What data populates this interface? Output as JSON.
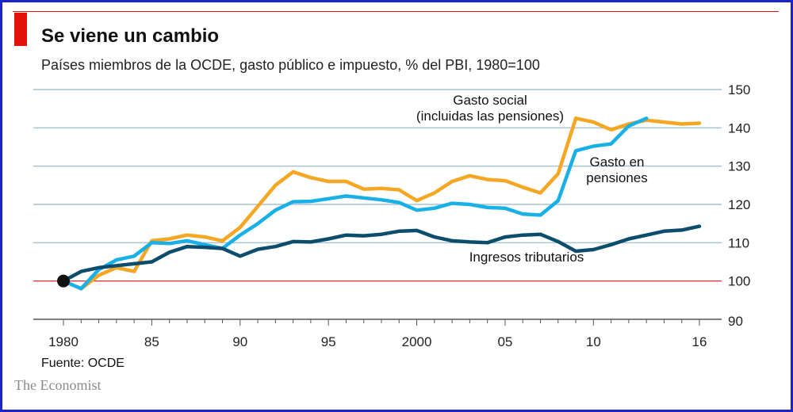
{
  "header": {
    "title": "Se viene un cambio",
    "subtitle": "Países miembros de la OCDE, gasto público e impuesto, % del PBI, 1980=100"
  },
  "footer": {
    "source": "Fuente: OCDE",
    "brand": "The Economist"
  },
  "colors": {
    "gasto_social": "#f5a623",
    "gasto_pensiones": "#18b0e6",
    "ingresos": "#0c4d6e",
    "baseline": "#e3120b",
    "grid": "#a9c4d0",
    "marker": "#111111"
  },
  "chart_data": {
    "type": "line",
    "title": "Se viene un cambio",
    "subtitle": "Países miembros de la OCDE, gasto público e impuesto, % del PBI, 1980=100",
    "xlabel": "",
    "ylabel": "",
    "xlim": [
      1980,
      2016
    ],
    "ylim": [
      90,
      150
    ],
    "y_ticks": [
      90,
      100,
      110,
      120,
      130,
      140,
      150
    ],
    "x_ticks": [
      {
        "year": 1980,
        "label": "1980"
      },
      {
        "year": 1985,
        "label": "85"
      },
      {
        "year": 1990,
        "label": "90"
      },
      {
        "year": 1995,
        "label": "95"
      },
      {
        "year": 2000,
        "label": "2000"
      },
      {
        "year": 2005,
        "label": "05"
      },
      {
        "year": 2010,
        "label": "10"
      },
      {
        "year": 2016,
        "label": "16"
      }
    ],
    "baseline": 100,
    "grid": true,
    "series": [
      {
        "key": "gasto_social",
        "label_lines": [
          "Gasto social",
          "(incluidas las pensiones)"
        ],
        "x": [
          1980,
          1981,
          1982,
          1983,
          1984,
          1985,
          1986,
          1987,
          1988,
          1989,
          1990,
          1991,
          1992,
          1993,
          1994,
          1995,
          1996,
          1997,
          1998,
          1999,
          2000,
          2001,
          2002,
          2003,
          2004,
          2005,
          2006,
          2007,
          2008,
          2009,
          2010,
          2011,
          2012,
          2013,
          2014,
          2015,
          2016
        ],
        "values": [
          100,
          98,
          101.5,
          103.5,
          102.5,
          110.5,
          111,
          112,
          111.5,
          110.5,
          114,
          119.5,
          125,
          128.5,
          127,
          126,
          126,
          124,
          124.2,
          123.8,
          121,
          123,
          126,
          127.5,
          126.5,
          126.2,
          124.5,
          123,
          128,
          142.5,
          141.5,
          139.5,
          141,
          142,
          141.5,
          141,
          141.2
        ]
      },
      {
        "key": "gasto_pensiones",
        "label_lines": [
          "Gasto en",
          "pensiones"
        ],
        "x": [
          1980,
          1981,
          1982,
          1983,
          1984,
          1985,
          1986,
          1987,
          1988,
          1989,
          1990,
          1991,
          1992,
          1993,
          1994,
          1995,
          1996,
          1997,
          1998,
          1999,
          2000,
          2001,
          2002,
          2003,
          2004,
          2005,
          2006,
          2007,
          2008,
          2009,
          2010,
          2011,
          2012,
          2013
        ],
        "values": [
          100,
          98,
          103,
          105.5,
          106.5,
          110,
          109.8,
          110.5,
          109.5,
          108.5,
          112,
          115,
          118.5,
          120.7,
          120.8,
          121.5,
          122.2,
          121.7,
          121.2,
          120.5,
          118.5,
          119,
          120.3,
          120,
          119.2,
          119,
          117.5,
          117.2,
          121,
          134,
          135.2,
          135.8,
          140.5,
          142.5
        ]
      },
      {
        "key": "ingresos",
        "label_lines": [
          "Ingresos tributarios"
        ],
        "x": [
          1980,
          1981,
          1982,
          1983,
          1984,
          1985,
          1986,
          1987,
          1988,
          1989,
          1990,
          1991,
          1992,
          1993,
          1994,
          1995,
          1996,
          1997,
          1998,
          1999,
          2000,
          2001,
          2002,
          2003,
          2004,
          2005,
          2006,
          2007,
          2008,
          2009,
          2010,
          2011,
          2012,
          2013,
          2014,
          2015,
          2016
        ],
        "values": [
          100,
          102.5,
          103.5,
          104,
          104.5,
          105,
          107.5,
          109,
          108.8,
          108.5,
          106.5,
          108.3,
          109,
          110.3,
          110.2,
          111,
          112,
          111.8,
          112.2,
          113,
          113.2,
          111.5,
          110.5,
          110.2,
          110,
          111.5,
          112,
          112.2,
          110.3,
          107.8,
          108.2,
          109.5,
          111,
          112,
          113,
          113.3,
          114.3
        ]
      }
    ],
    "markers": [
      {
        "x": 1980,
        "y": 100
      }
    ]
  }
}
